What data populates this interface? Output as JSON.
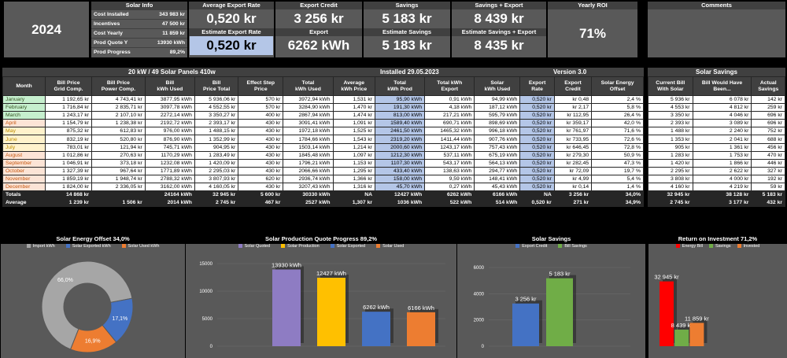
{
  "year": "2024",
  "solar_info": {
    "title": "Solar Info",
    "rows": [
      [
        "Cost Installed",
        "343 983 kr"
      ],
      [
        "Incentives",
        "47 500 kr"
      ],
      [
        "Cost Yearly",
        "11 859 kr"
      ],
      [
        "Prod Quote Y",
        "13930 kWh"
      ],
      [
        "Prod Progress",
        "89,2%"
      ]
    ]
  },
  "kpi": {
    "avg_export_rate_label": "Average Export Rate",
    "avg_export_rate": "0,520 kr",
    "est_export_rate_label": "Estimate Export Rate",
    "est_export_rate": "0,520 kr",
    "export_credit_label": "Export Credit",
    "export_credit": "3 256 kr",
    "export_label": "Export",
    "export": "6262 kWh",
    "savings_label": "Savings",
    "savings": "5 183 kr",
    "est_savings_label": "Estimate Savings",
    "est_savings": "5 183 kr",
    "savings_export_label": "Savings + Export",
    "savings_export": "8 439 kr",
    "est_savings_export_label": "Estimate Savings + Export",
    "est_savings_export": "8 435 kr",
    "roi_label": "Yearly ROI",
    "roi": "71%"
  },
  "comments_label": "Comments",
  "main_header": {
    "panels": "20 kW / 49 Solar Panels 410w",
    "installed": "Installed 29.05.2023",
    "version": "Version 3.0"
  },
  "columns": [
    "Month",
    "Bill Price\nGrid Comp.",
    "Bill Price\nPower Comp.",
    "Bill\nkWh Used",
    "Bill\nPrice Total",
    "Effect Step\nPrice",
    "Total\nkWh Used",
    "Average\nkWh Price",
    "Total\nkWh Prod",
    "Total kWh\nExport",
    "Solar\nkWh Used",
    "Export\nRate",
    "Export\nCredit",
    "Solar Energy\nOffset"
  ],
  "months": [
    [
      "January",
      "1 192,65 kr",
      "4 743,41 kr",
      "3877,95 kWh",
      "5 936,06 kr",
      "570 kr",
      "3972,94 kWh",
      "1,531 kr",
      "95,90 kWh",
      "0,91 kWh",
      "94,99 kWh",
      "0,520 kr",
      "kr 0,48",
      "2,4 %"
    ],
    [
      "February",
      "1 716,84 kr",
      "2 835,71 kr",
      "3097,78 kWh",
      "4 552,55 kr",
      "570 kr",
      "3284,90 kWh",
      "1,470 kr",
      "191,30 kWh",
      "4,18 kWh",
      "187,12 kWh",
      "0,520 kr",
      "kr 2,17",
      "5,8 %"
    ],
    [
      "March",
      "1 243,17 kr",
      "2 107,10 kr",
      "2272,14 kWh",
      "3 350,27 kr",
      "400 kr",
      "2867,94 kWh",
      "1,474 kr",
      "813,00 kWh",
      "217,21 kWh",
      "595,79 kWh",
      "0,520 kr",
      "kr 112,95",
      "26,4 %"
    ],
    [
      "April",
      "1 154,79 kr",
      "1 238,38 kr",
      "2192,72 kWh",
      "2 393,17 kr",
      "430 kr",
      "3091,41 kWh",
      "1,091 kr",
      "1589,40 kWh",
      "690,71 kWh",
      "898,69 kWh",
      "0,520 kr",
      "kr 359,17",
      "42,0 %"
    ],
    [
      "May",
      "875,32 kr",
      "612,83 kr",
      "976,00 kWh",
      "1 488,15 kr",
      "430 kr",
      "1972,18 kWh",
      "1,525 kr",
      "2461,50 kWh",
      "1465,32 kWh",
      "996,18 kWh",
      "0,520 kr",
      "kr 761,97",
      "71,6 %"
    ],
    [
      "June",
      "832,19 kr",
      "520,80 kr",
      "876,90 kWh",
      "1 352,99 kr",
      "430 kr",
      "1784,66 kWh",
      "1,543 kr",
      "2319,20 kWh",
      "1411,44 kWh",
      "907,76 kWh",
      "0,520 kr",
      "kr 733,95",
      "72,6 %"
    ],
    [
      "July",
      "783,01 kr",
      "121,94 kr",
      "745,71 kWh",
      "904,95 kr",
      "430 kr",
      "1503,14 kWh",
      "1,214 kr",
      "2000,60 kWh",
      "1243,17 kWh",
      "757,43 kWh",
      "0,520 kr",
      "kr 646,45",
      "72,8 %"
    ],
    [
      "August",
      "1 012,86 kr",
      "270,63 kr",
      "1170,29 kWh",
      "1 283,49 kr",
      "430 kr",
      "1845,48 kWh",
      "1,097 kr",
      "1212,30 kWh",
      "537,11 kWh",
      "675,19 kWh",
      "0,520 kr",
      "kr 279,30",
      "50,9 %"
    ],
    [
      "September",
      "1 046,91 kr",
      "373,18 kr",
      "1232,08 kWh",
      "1 420,09 kr",
      "430 kr",
      "1796,21 kWh",
      "1,153 kr",
      "1107,30 kWh",
      "543,17 kWh",
      "564,13 kWh",
      "0,520 kr",
      "kr 282,45",
      "47,3 %"
    ],
    [
      "October",
      "1 327,39 kr",
      "967,64 kr",
      "1771,89 kWh",
      "2 295,03 kr",
      "430 kr",
      "2066,66 kWh",
      "1,295 kr",
      "433,40 kWh",
      "138,63 kWh",
      "294,77 kWh",
      "0,520 kr",
      "kr 72,09",
      "19,7 %"
    ],
    [
      "November",
      "1 859,19 kr",
      "1 948,74 kr",
      "2788,32 kWh",
      "3 807,93 kr",
      "620 kr",
      "2936,74 kWh",
      "1,366 kr",
      "158,00 kWh",
      "9,59 kWh",
      "148,41 kWh",
      "0,520 kr",
      "kr 4,99",
      "5,4 %"
    ],
    [
      "December",
      "1 824,00 kr",
      "2 336,05 kr",
      "3162,00 kWh",
      "4 160,05 kr",
      "430 kr",
      "3207,43 kWh",
      "1,316 kr",
      "45,70 kWh",
      "0,27 kWh",
      "45,43 kWh",
      "0,520 kr",
      "kr 0,14",
      "1,4 %"
    ]
  ],
  "totals": [
    "Totals",
    "14 868 kr",
    "",
    "24164 kWh",
    "32 945 kr",
    "5 600 kr",
    "30330 kWh",
    "NA",
    "12427 kWh",
    "6262 kWh",
    "6166 kWh",
    "NA",
    "3 256 kr",
    "34,0%"
  ],
  "average": [
    "Average",
    "1 239 kr",
    "1 506 kr",
    "2014 kWh",
    "2 745 kr",
    "467 kr",
    "2527 kWh",
    "1,307 kr",
    "1036 kWh",
    "522 kWh",
    "514 kWh",
    "0,520 kr",
    "271 kr",
    "34,9%"
  ],
  "savings_table": {
    "title": "Solar Savings",
    "columns": [
      "Current Bill\nWith Solar",
      "Bill Would Have\nBeen...",
      "Actual\nSavings"
    ],
    "rows": [
      [
        "5 936 kr",
        "6 078 kr",
        "142 kr"
      ],
      [
        "4 553 kr",
        "4 812 kr",
        "259 kr"
      ],
      [
        "3 350 kr",
        "4 046 kr",
        "696 kr"
      ],
      [
        "2 393 kr",
        "3 089 kr",
        "696 kr"
      ],
      [
        "1 488 kr",
        "2 240 kr",
        "752 kr"
      ],
      [
        "1 353 kr",
        "2 041 kr",
        "688 kr"
      ],
      [
        "905 kr",
        "1 361 kr",
        "456 kr"
      ],
      [
        "1 283 kr",
        "1 753 kr",
        "470 kr"
      ],
      [
        "1 420 kr",
        "1 866 kr",
        "446 kr"
      ],
      [
        "2 295 kr",
        "2 622 kr",
        "327 kr"
      ],
      [
        "3 808 kr",
        "4 000 kr",
        "192 kr"
      ],
      [
        "4 160 kr",
        "4 219 kr",
        "59 kr"
      ]
    ],
    "totals": [
      "32 945 kr",
      "38 128 kr",
      "5 183 kr"
    ],
    "average": [
      "2 745 kr",
      "3 177 kr",
      "432 kr"
    ]
  },
  "charts": {
    "offset": {
      "title": "Solar Energy Offset 34,0%",
      "legend": [
        "Import kWh",
        "Solar Exported kWh",
        "Solar Used kWh"
      ],
      "colors": [
        "#a6a6a6",
        "#4472c4",
        "#ed7d31"
      ],
      "values": [
        66.0,
        17.1,
        16.9
      ],
      "labels": [
        "66,0%",
        "17,1%",
        "16,9%"
      ]
    },
    "production": {
      "title": "Solar Production Quote Progress 89,2%",
      "legend": [
        "Solar Quoted",
        "Solar Production",
        "Solar Exported",
        "Solar Used"
      ],
      "colors": [
        "#8e7cc3",
        "#ffc000",
        "#4472c4",
        "#ed7d31"
      ],
      "values": [
        13930,
        12427,
        6262,
        6166
      ],
      "labels": [
        "13930 kWh",
        "12427 kWh",
        "6262 kWh",
        "6166 kWh"
      ],
      "yticks": [
        "15000",
        "10000",
        "5000",
        "0"
      ],
      "ymax": 15000
    },
    "savings": {
      "title": "Solar Savings",
      "legend": [
        "Export Credit",
        "Bill Savings"
      ],
      "colors": [
        "#4472c4",
        "#70ad47"
      ],
      "values": [
        3256,
        5183
      ],
      "labels": [
        "3 256 kr",
        "5 183 kr"
      ],
      "yticks": [
        "6000",
        "4000",
        "2000",
        "0"
      ],
      "ymax": 6000
    },
    "roi": {
      "title": "Return on Investment 71,2%",
      "legend": [
        "Energy Bill",
        "Savings",
        "Invested"
      ],
      "colors": [
        "#ff0000",
        "#70ad47",
        "#ed7d31"
      ],
      "values": [
        32945,
        8439,
        11859
      ],
      "labels": [
        "32 945 kr",
        "8 439 kr",
        "11 859 kr"
      ],
      "ymax": 40000
    }
  }
}
